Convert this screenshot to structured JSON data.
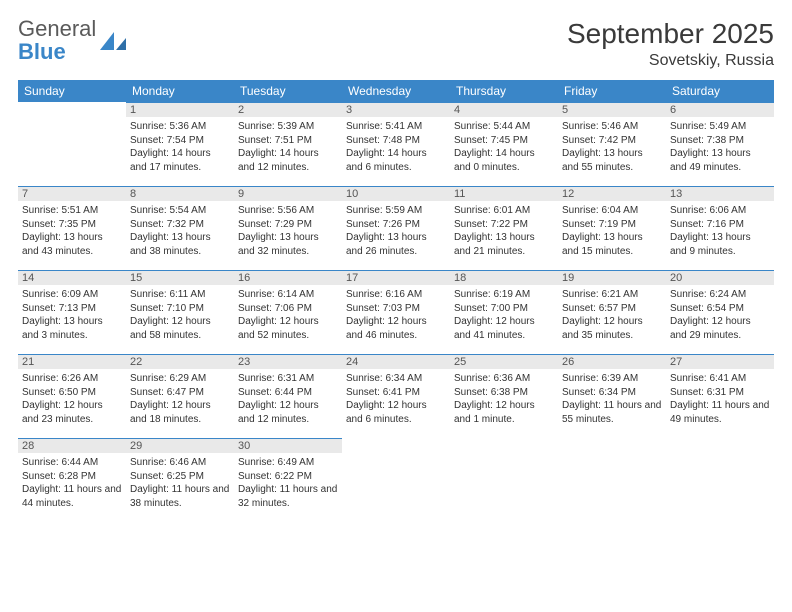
{
  "brand": {
    "top": "General",
    "bottom": "Blue",
    "accent": "#3a86c8",
    "grey": "#5a5a5a"
  },
  "header": {
    "title": "September 2025",
    "location": "Sovetskiy, Russia"
  },
  "weekdays": [
    "Sunday",
    "Monday",
    "Tuesday",
    "Wednesday",
    "Thursday",
    "Friday",
    "Saturday"
  ],
  "style": {
    "header_bg": "#3a86c8",
    "header_text": "#ffffff",
    "daynum_bg": "#e9e9e9",
    "daynum_border": "#3a86c8",
    "body_text": "#333333",
    "page_bg": "#ffffff",
    "title_fontsize": 28,
    "location_fontsize": 16,
    "weekday_fontsize": 12,
    "daynum_fontsize": 11,
    "cell_fontsize": 10
  },
  "weeks": [
    [
      {
        "n": "",
        "sr": "",
        "ss": "",
        "dl": ""
      },
      {
        "n": "1",
        "sr": "Sunrise: 5:36 AM",
        "ss": "Sunset: 7:54 PM",
        "dl": "Daylight: 14 hours and 17 minutes."
      },
      {
        "n": "2",
        "sr": "Sunrise: 5:39 AM",
        "ss": "Sunset: 7:51 PM",
        "dl": "Daylight: 14 hours and 12 minutes."
      },
      {
        "n": "3",
        "sr": "Sunrise: 5:41 AM",
        "ss": "Sunset: 7:48 PM",
        "dl": "Daylight: 14 hours and 6 minutes."
      },
      {
        "n": "4",
        "sr": "Sunrise: 5:44 AM",
        "ss": "Sunset: 7:45 PM",
        "dl": "Daylight: 14 hours and 0 minutes."
      },
      {
        "n": "5",
        "sr": "Sunrise: 5:46 AM",
        "ss": "Sunset: 7:42 PM",
        "dl": "Daylight: 13 hours and 55 minutes."
      },
      {
        "n": "6",
        "sr": "Sunrise: 5:49 AM",
        "ss": "Sunset: 7:38 PM",
        "dl": "Daylight: 13 hours and 49 minutes."
      }
    ],
    [
      {
        "n": "7",
        "sr": "Sunrise: 5:51 AM",
        "ss": "Sunset: 7:35 PM",
        "dl": "Daylight: 13 hours and 43 minutes."
      },
      {
        "n": "8",
        "sr": "Sunrise: 5:54 AM",
        "ss": "Sunset: 7:32 PM",
        "dl": "Daylight: 13 hours and 38 minutes."
      },
      {
        "n": "9",
        "sr": "Sunrise: 5:56 AM",
        "ss": "Sunset: 7:29 PM",
        "dl": "Daylight: 13 hours and 32 minutes."
      },
      {
        "n": "10",
        "sr": "Sunrise: 5:59 AM",
        "ss": "Sunset: 7:26 PM",
        "dl": "Daylight: 13 hours and 26 minutes."
      },
      {
        "n": "11",
        "sr": "Sunrise: 6:01 AM",
        "ss": "Sunset: 7:22 PM",
        "dl": "Daylight: 13 hours and 21 minutes."
      },
      {
        "n": "12",
        "sr": "Sunrise: 6:04 AM",
        "ss": "Sunset: 7:19 PM",
        "dl": "Daylight: 13 hours and 15 minutes."
      },
      {
        "n": "13",
        "sr": "Sunrise: 6:06 AM",
        "ss": "Sunset: 7:16 PM",
        "dl": "Daylight: 13 hours and 9 minutes."
      }
    ],
    [
      {
        "n": "14",
        "sr": "Sunrise: 6:09 AM",
        "ss": "Sunset: 7:13 PM",
        "dl": "Daylight: 13 hours and 3 minutes."
      },
      {
        "n": "15",
        "sr": "Sunrise: 6:11 AM",
        "ss": "Sunset: 7:10 PM",
        "dl": "Daylight: 12 hours and 58 minutes."
      },
      {
        "n": "16",
        "sr": "Sunrise: 6:14 AM",
        "ss": "Sunset: 7:06 PM",
        "dl": "Daylight: 12 hours and 52 minutes."
      },
      {
        "n": "17",
        "sr": "Sunrise: 6:16 AM",
        "ss": "Sunset: 7:03 PM",
        "dl": "Daylight: 12 hours and 46 minutes."
      },
      {
        "n": "18",
        "sr": "Sunrise: 6:19 AM",
        "ss": "Sunset: 7:00 PM",
        "dl": "Daylight: 12 hours and 41 minutes."
      },
      {
        "n": "19",
        "sr": "Sunrise: 6:21 AM",
        "ss": "Sunset: 6:57 PM",
        "dl": "Daylight: 12 hours and 35 minutes."
      },
      {
        "n": "20",
        "sr": "Sunrise: 6:24 AM",
        "ss": "Sunset: 6:54 PM",
        "dl": "Daylight: 12 hours and 29 minutes."
      }
    ],
    [
      {
        "n": "21",
        "sr": "Sunrise: 6:26 AM",
        "ss": "Sunset: 6:50 PM",
        "dl": "Daylight: 12 hours and 23 minutes."
      },
      {
        "n": "22",
        "sr": "Sunrise: 6:29 AM",
        "ss": "Sunset: 6:47 PM",
        "dl": "Daylight: 12 hours and 18 minutes."
      },
      {
        "n": "23",
        "sr": "Sunrise: 6:31 AM",
        "ss": "Sunset: 6:44 PM",
        "dl": "Daylight: 12 hours and 12 minutes."
      },
      {
        "n": "24",
        "sr": "Sunrise: 6:34 AM",
        "ss": "Sunset: 6:41 PM",
        "dl": "Daylight: 12 hours and 6 minutes."
      },
      {
        "n": "25",
        "sr": "Sunrise: 6:36 AM",
        "ss": "Sunset: 6:38 PM",
        "dl": "Daylight: 12 hours and 1 minute."
      },
      {
        "n": "26",
        "sr": "Sunrise: 6:39 AM",
        "ss": "Sunset: 6:34 PM",
        "dl": "Daylight: 11 hours and 55 minutes."
      },
      {
        "n": "27",
        "sr": "Sunrise: 6:41 AM",
        "ss": "Sunset: 6:31 PM",
        "dl": "Daylight: 11 hours and 49 minutes."
      }
    ],
    [
      {
        "n": "28",
        "sr": "Sunrise: 6:44 AM",
        "ss": "Sunset: 6:28 PM",
        "dl": "Daylight: 11 hours and 44 minutes."
      },
      {
        "n": "29",
        "sr": "Sunrise: 6:46 AM",
        "ss": "Sunset: 6:25 PM",
        "dl": "Daylight: 11 hours and 38 minutes."
      },
      {
        "n": "30",
        "sr": "Sunrise: 6:49 AM",
        "ss": "Sunset: 6:22 PM",
        "dl": "Daylight: 11 hours and 32 minutes."
      },
      {
        "n": "",
        "sr": "",
        "ss": "",
        "dl": ""
      },
      {
        "n": "",
        "sr": "",
        "ss": "",
        "dl": ""
      },
      {
        "n": "",
        "sr": "",
        "ss": "",
        "dl": ""
      },
      {
        "n": "",
        "sr": "",
        "ss": "",
        "dl": ""
      }
    ]
  ]
}
